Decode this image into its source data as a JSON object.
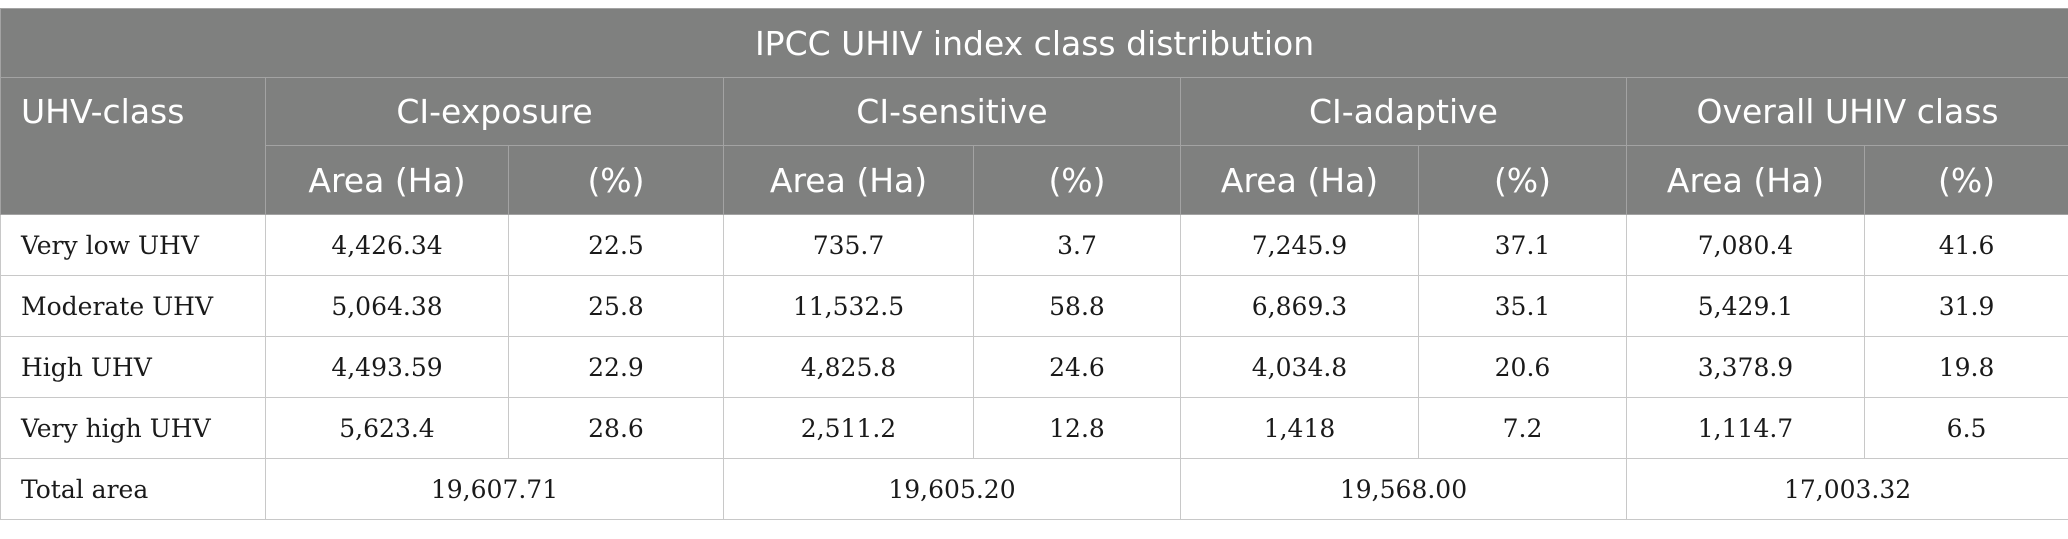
{
  "table": {
    "title": "IPCC UHIV index class distribution",
    "row_header": "UHV-class",
    "groups": [
      "CI-exposure",
      "CI-sensitive",
      "CI-adaptive",
      "Overall UHIV class"
    ],
    "subheaders": {
      "area": "Area (Ha)",
      "percent": "(%)"
    },
    "rows": [
      {
        "label": "Very low UHV",
        "values": [
          "4,426.34",
          "22.5",
          "735.7",
          "3.7",
          "7,245.9",
          "37.1",
          "7,080.4",
          "41.6"
        ]
      },
      {
        "label": "Moderate UHV",
        "values": [
          "5,064.38",
          "25.8",
          "11,532.5",
          "58.8",
          "6,869.3",
          "35.1",
          "5,429.1",
          "31.9"
        ]
      },
      {
        "label": "High UHV",
        "values": [
          "4,493.59",
          "22.9",
          "4,825.8",
          "24.6",
          "4,034.8",
          "20.6",
          "3,378.9",
          "19.8"
        ]
      },
      {
        "label": "Very high UHV",
        "values": [
          "5,623.4",
          "28.6",
          "2,511.2",
          "12.8",
          "1,418",
          "7.2",
          "1,114.7",
          "6.5"
        ]
      }
    ],
    "total": {
      "label": "Total area",
      "values": [
        "19,607.71",
        "19,605.20",
        "19,568.00",
        "17,003.32"
      ]
    }
  },
  "colors": {
    "header_bg": "#7f807f",
    "header_text": "#ffffff",
    "border": "#c8c8c8"
  }
}
